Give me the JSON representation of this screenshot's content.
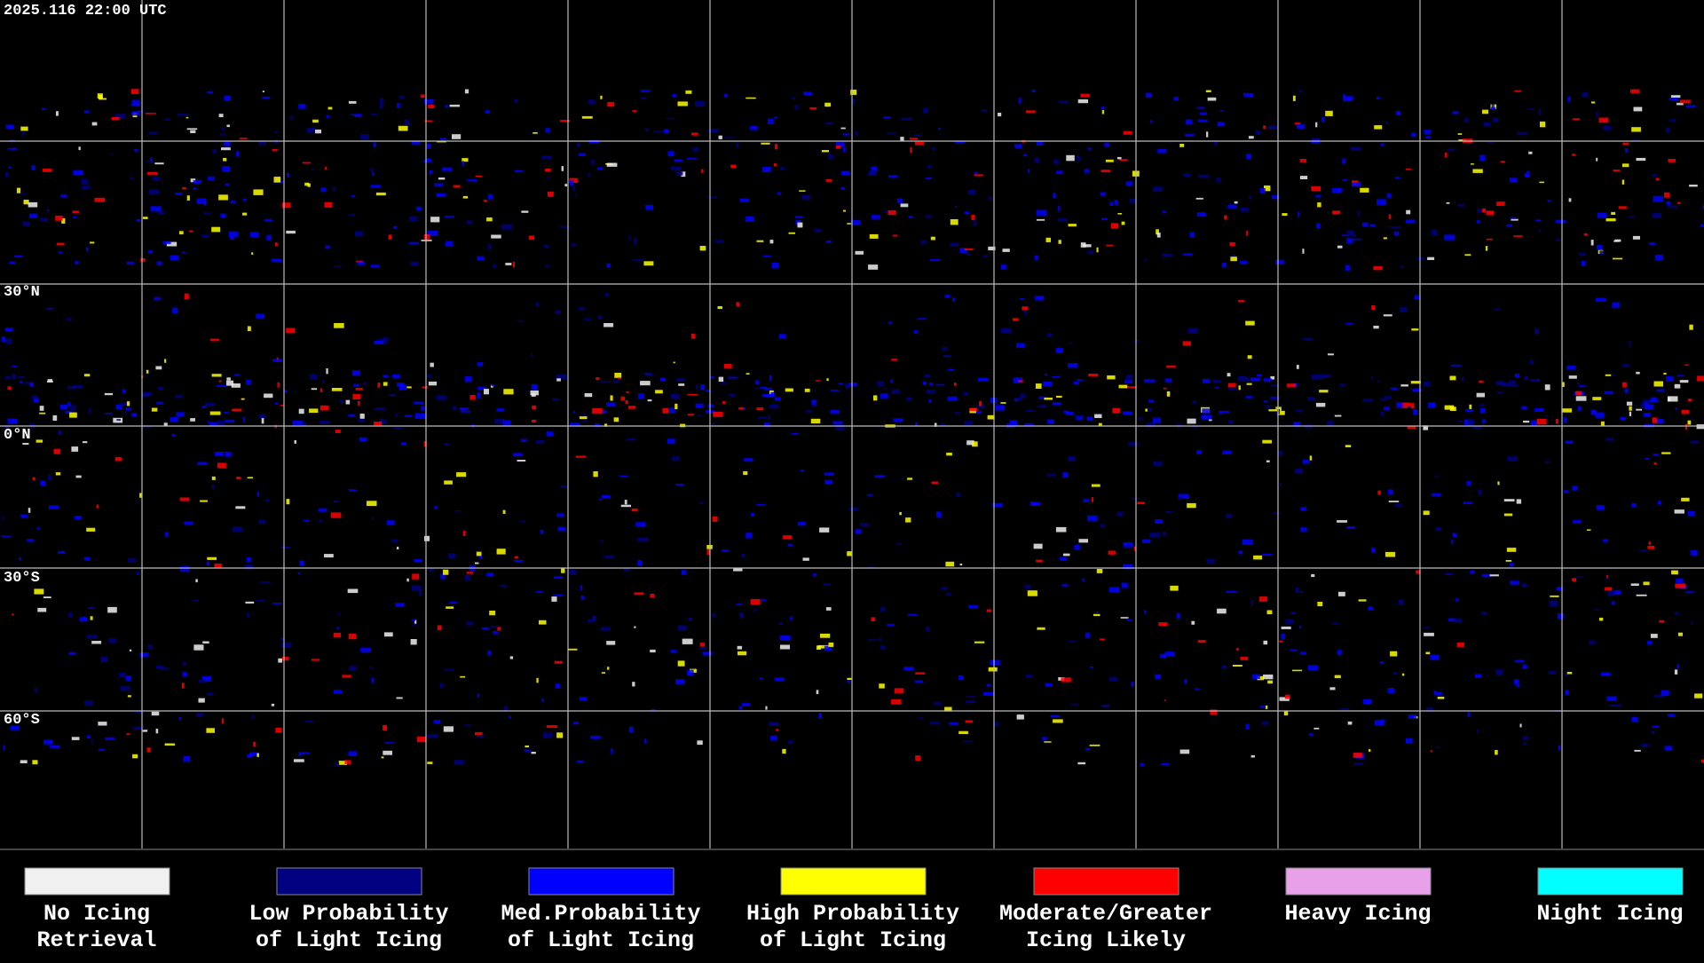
{
  "header": {
    "timestamp": "2025.116 22:00 UTC"
  },
  "map": {
    "latitude_labels": [
      "30°N",
      "0°N",
      "30°S",
      "60°S"
    ]
  },
  "legend": {
    "items": [
      {
        "label_lines": [
          "No Icing",
          "Retrieval"
        ],
        "color": "#f0f0f0"
      },
      {
        "label_lines": [
          "Low Probability",
          "of Light Icing"
        ],
        "color": "#000080"
      },
      {
        "label_lines": [
          "Med.Probability",
          "of Light Icing"
        ],
        "color": "#0000ff"
      },
      {
        "label_lines": [
          "High Probability",
          "of Light Icing"
        ],
        "color": "#ffff00"
      },
      {
        "label_lines": [
          "Moderate/Greater",
          "Icing Likely"
        ],
        "color": "#ff0000"
      },
      {
        "label_lines": [
          "Heavy Icing"
        ],
        "color": "#e8a0e8"
      },
      {
        "label_lines": [
          "Night Icing"
        ],
        "color": "#00ffff"
      }
    ]
  }
}
